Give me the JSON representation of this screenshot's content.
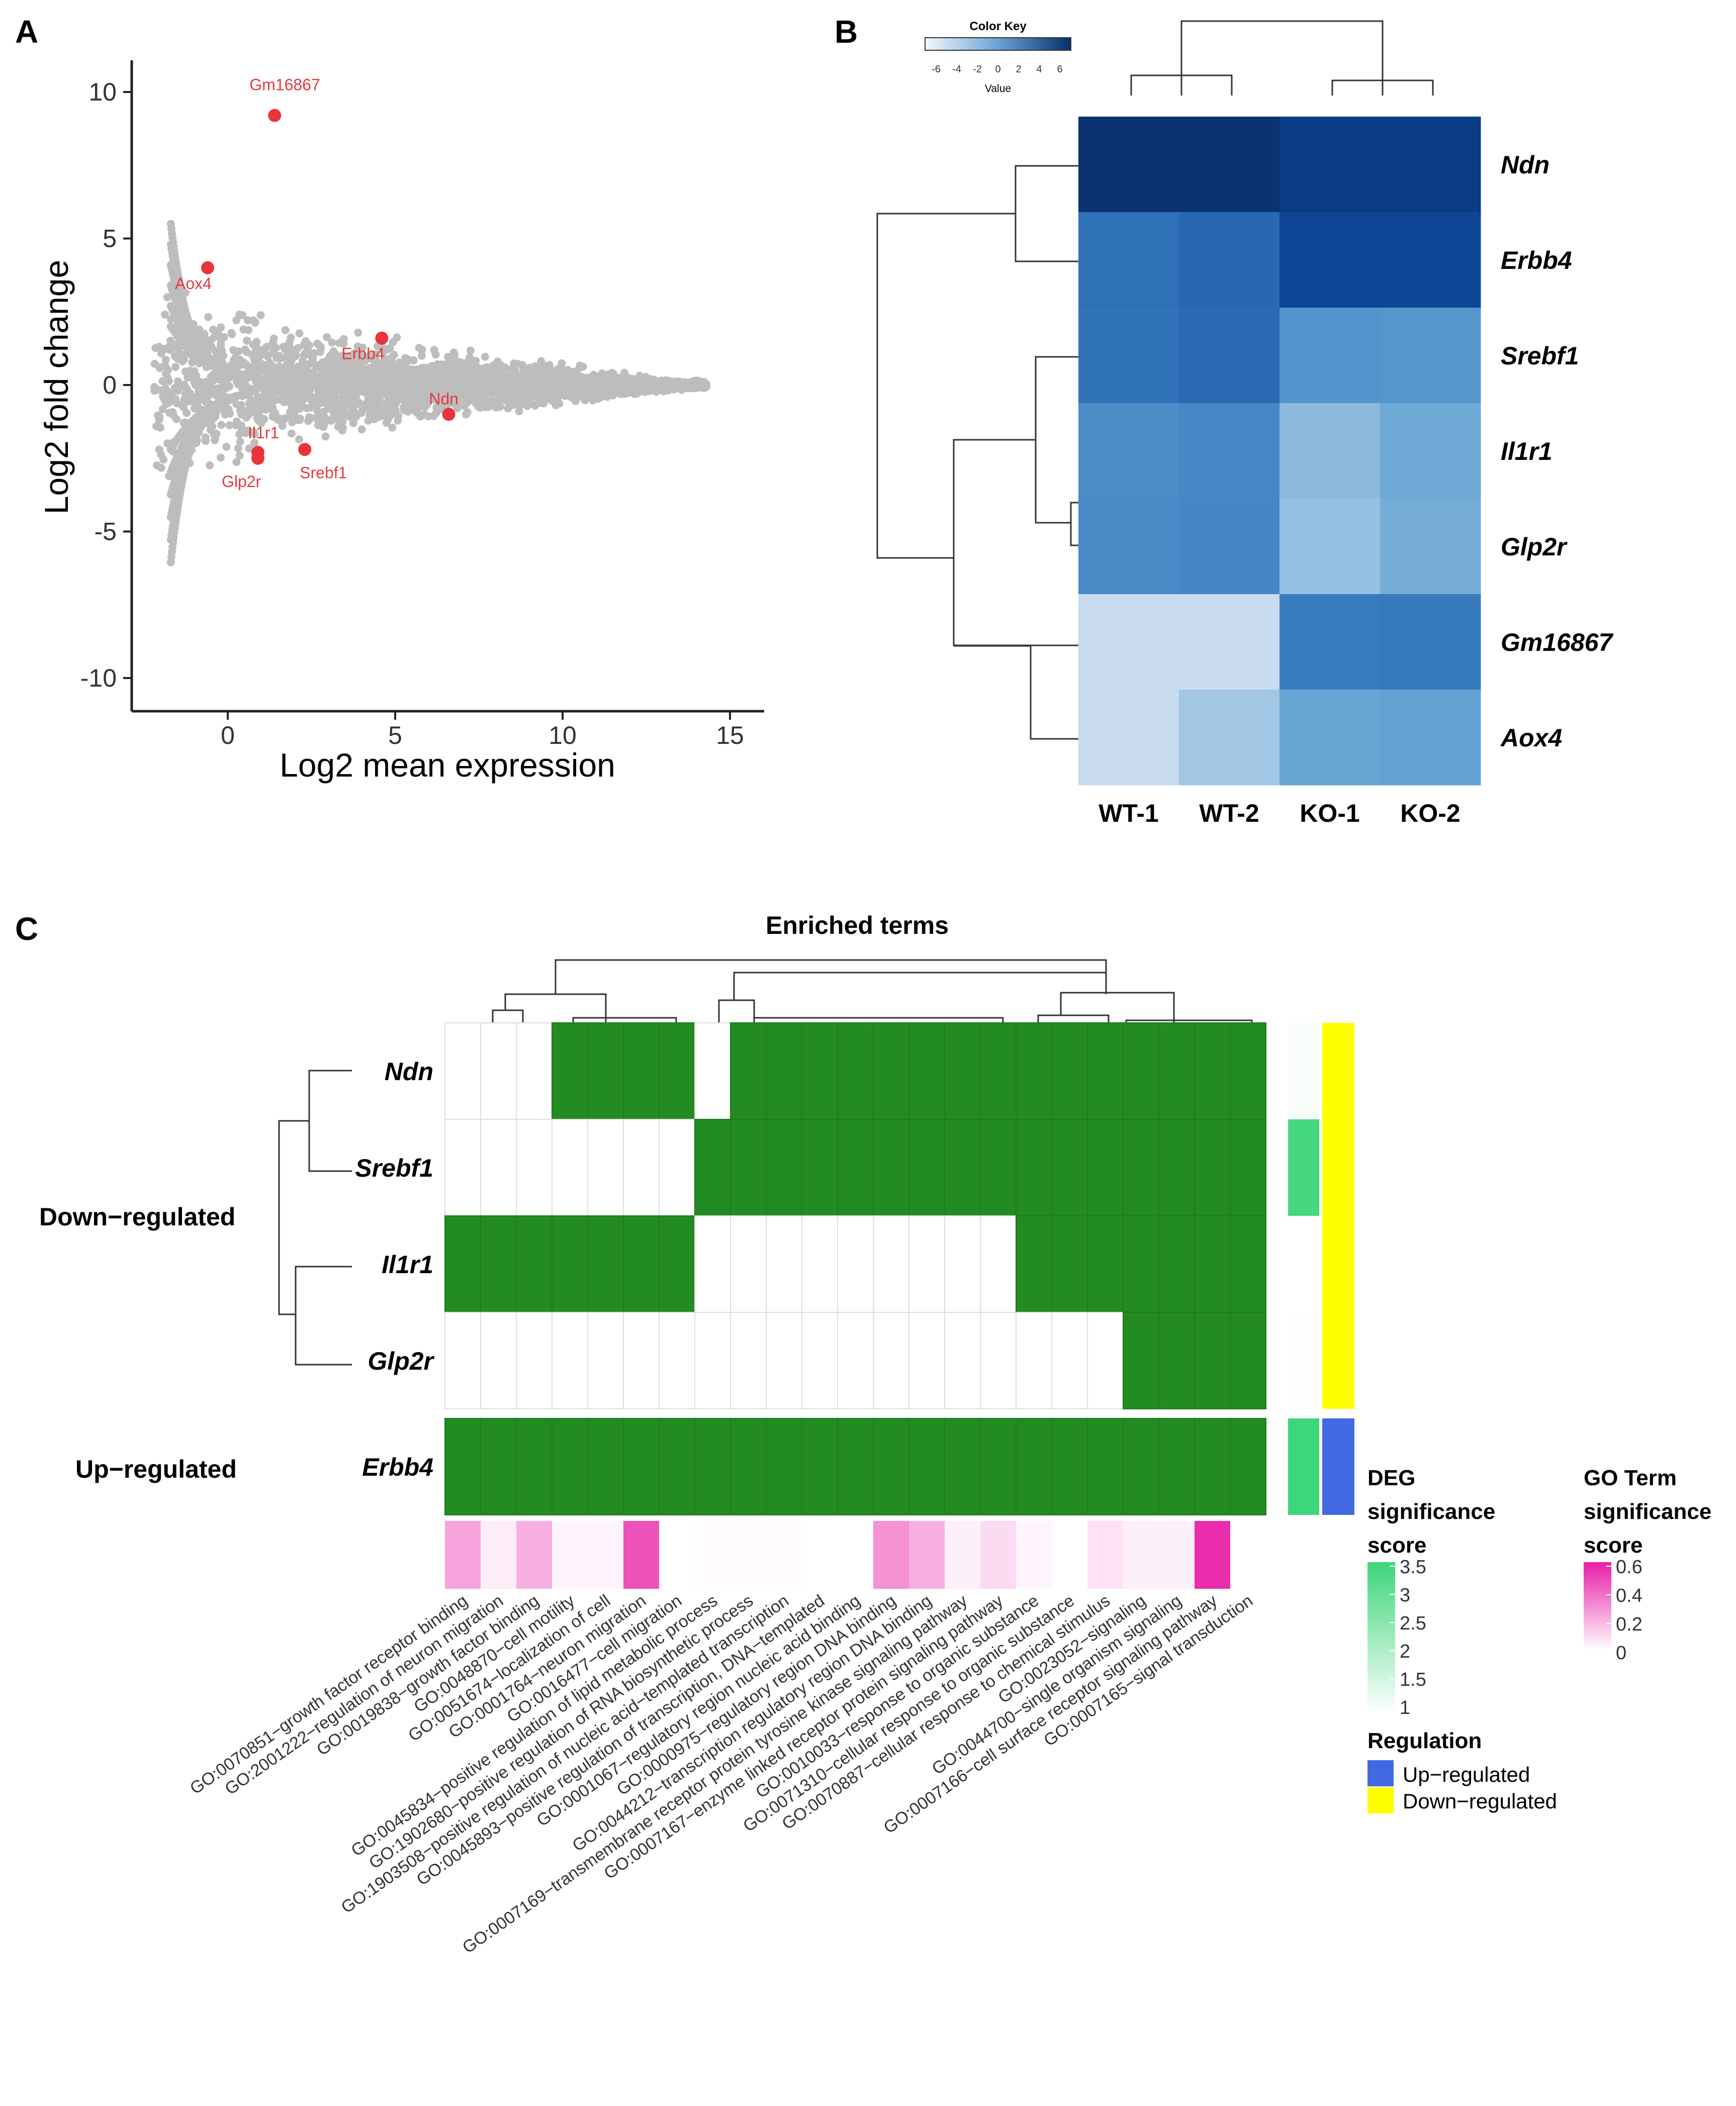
{
  "panels": {
    "a": "A",
    "b": "B",
    "c": "C"
  },
  "chart_data": [
    {
      "type": "scatter",
      "panel": "A",
      "title": "",
      "xlabel": "Log2 mean expression",
      "ylabel": "Log2 fold change",
      "xlim": [
        -3.5,
        16
      ],
      "ylim": [
        -11.5,
        11
      ],
      "xticks": [
        "0",
        "5",
        "10",
        "15"
      ],
      "yticks": [
        "10",
        "5",
        "0",
        "-5",
        "-10"
      ],
      "background_color": "#bdbdbd",
      "highlight_color": "#e8343a",
      "highlighted_genes": [
        {
          "name": "Gm16867",
          "x": 1.4,
          "y": 9.2
        },
        {
          "name": "Aox4",
          "x": -0.6,
          "y": 4.0
        },
        {
          "name": "Erbb4",
          "x": 4.6,
          "y": 1.6
        },
        {
          "name": "Ndn",
          "x": 6.6,
          "y": -1.0
        },
        {
          "name": "Il1r1",
          "x": 0.9,
          "y": -2.3
        },
        {
          "name": "Glp2r",
          "x": 0.9,
          "y": -2.5
        },
        {
          "name": "Srebf1",
          "x": 2.3,
          "y": -2.2
        }
      ]
    },
    {
      "type": "heatmap",
      "panel": "B",
      "color_key": {
        "title": "Color Key",
        "label": "Value",
        "ticks": [
          "-6",
          "-4",
          "-2",
          "0",
          "2",
          "4",
          "6"
        ]
      },
      "columns": [
        "WT-1",
        "WT-2",
        "KO-1",
        "KO-2"
      ],
      "rows": [
        "Ndn",
        "Erbb4",
        "Srebf1",
        "Il1r1",
        "Glp2r",
        "Gm16867",
        "Aox4"
      ],
      "values": [
        [
          6.8,
          6.8,
          6.2,
          6.2
        ],
        [
          3.6,
          4.0,
          5.6,
          5.6
        ],
        [
          3.5,
          3.9,
          1.5,
          1.3
        ],
        [
          2.0,
          2.3,
          -1.3,
          0.0
        ],
        [
          2.1,
          2.4,
          -1.8,
          -0.3
        ],
        [
          -4.6,
          -4.6,
          3.1,
          3.2
        ],
        [
          -4.6,
          -2.5,
          0.3,
          0.5
        ]
      ]
    },
    {
      "type": "heatmap",
      "panel": "C",
      "title": "Enriched terms",
      "groups": [
        "Down−regulated",
        "Up−regulated"
      ],
      "genes": [
        "Ndn",
        "Srebf1",
        "Il1r1",
        "Glp2r",
        "Erbb4"
      ],
      "terms": [
        "GO:0070851−growth factor receptor binding",
        "GO:2001222−regulation of neuron migration",
        "GO:0019838−growth factor binding",
        "GO:0048870−cell motility",
        "GO:0051674−localization of cell",
        "GO:0001764−neuron migration",
        "GO:0016477−cell migration",
        "GO:0045834−positive regulation of lipid metabolic process",
        "GO:1902680−positive regulation of RNA biosynthetic process",
        "GO:1903508−positive regulation of nucleic acid−templated transcription",
        "GO:0045893−positive regulation of transcription, DNA−templated",
        "GO:0001067−regulatory region nucleic acid binding",
        "GO:0000975−regulatory region DNA binding",
        "GO:0044212−transcription regulatory region DNA binding",
        "GO:0007169−transmembrane receptor protein tyrosine kinase signaling pathway",
        "GO:0007167−enzyme linked receptor protein signaling pathway",
        "GO:0010033−response to organic substance",
        "GO:0071310−cellular response to organic substance",
        "GO:0070887−cellular response to chemical stimulus",
        "GO:0023052−signaling",
        "GO:0044700−single organism signaling",
        "GO:0007166−cell surface receptor signaling pathway",
        "GO:0007165−signal transduction"
      ],
      "membership": [
        [
          0,
          0,
          0,
          1,
          1,
          1,
          1,
          0,
          1,
          1,
          1,
          1,
          1,
          1,
          1,
          1,
          1,
          1,
          1,
          1,
          1,
          1,
          1
        ],
        [
          0,
          0,
          0,
          0,
          0,
          0,
          0,
          1,
          1,
          1,
          1,
          1,
          1,
          1,
          1,
          1,
          1,
          1,
          1,
          1,
          1,
          1,
          1
        ],
        [
          1,
          1,
          1,
          1,
          1,
          1,
          1,
          0,
          0,
          0,
          0,
          0,
          0,
          0,
          0,
          0,
          1,
          1,
          1,
          1,
          1,
          1,
          1
        ],
        [
          0,
          0,
          0,
          0,
          0,
          0,
          0,
          0,
          0,
          0,
          0,
          0,
          0,
          0,
          0,
          0,
          0,
          0,
          0,
          1,
          1,
          1,
          1
        ],
        [
          1,
          1,
          1,
          1,
          1,
          1,
          1,
          1,
          1,
          1,
          1,
          1,
          1,
          1,
          1,
          1,
          1,
          1,
          1,
          1,
          1,
          1,
          1
        ]
      ],
      "member_color": "#228b22",
      "deg_significance": [
        1.1,
        3.5,
        1.0,
        1.05,
        3.6
      ],
      "regulation": [
        "Down−regulated",
        "Down−regulated",
        "Down−regulated",
        "Down−regulated",
        "Up−regulated"
      ],
      "go_significance": [
        0.25,
        0.05,
        0.22,
        0.03,
        0.03,
        0.48,
        0.0,
        0.01,
        0.01,
        0.01,
        0.0,
        0.0,
        0.3,
        0.22,
        0.04,
        0.1,
        0.03,
        0.0,
        0.08,
        0.04,
        0.04,
        0.58,
        0.0
      ],
      "legend": {
        "deg": {
          "title_lines": [
            "DEG",
            "significance",
            "score"
          ],
          "ticks": [
            "3.5",
            "3",
            "2.5",
            "2",
            "1.5",
            "1"
          ]
        },
        "go": {
          "title_lines": [
            "GO Term",
            "significance",
            "score"
          ],
          "ticks": [
            "0.6",
            "0.4",
            "0.2",
            "0"
          ]
        },
        "regulation": {
          "title": "Regulation",
          "items": [
            {
              "label": "Up−regulated",
              "color": "#4169e1"
            },
            {
              "label": "Down−regulated",
              "color": "#ffff00"
            }
          ]
        }
      }
    }
  ]
}
